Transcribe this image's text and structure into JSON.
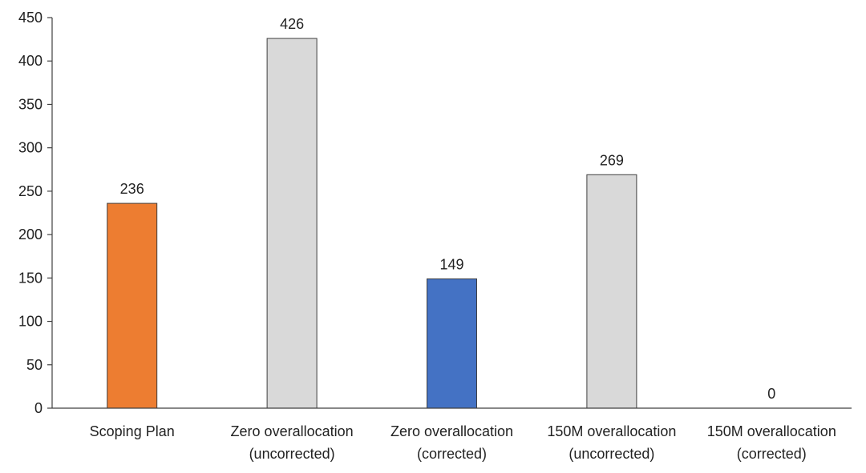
{
  "chart_data": {
    "type": "bar",
    "title": "",
    "xlabel": "",
    "ylabel": "",
    "ylim": [
      0,
      450
    ],
    "yticks": [
      0,
      50,
      100,
      150,
      200,
      250,
      300,
      350,
      400,
      450
    ],
    "grid": false,
    "legend": "none",
    "categories": [
      [
        "Scoping Plan"
      ],
      [
        "Zero overallocation",
        "(uncorrected)"
      ],
      [
        "Zero overallocation",
        "(corrected)"
      ],
      [
        "150M overallocation",
        "(uncorrected)"
      ],
      [
        "150M overallocation",
        "(corrected)"
      ]
    ],
    "values": [
      236,
      426,
      149,
      269,
      0
    ],
    "data_labels": [
      "236",
      "426",
      "149",
      "269",
      "0"
    ],
    "colors": [
      "#ED7D31",
      "#D9D9D9",
      "#4472C4",
      "#D9D9D9",
      "#D9D9D9"
    ],
    "bar_outline": "#3f3f3f",
    "axis_color": "#404040"
  }
}
